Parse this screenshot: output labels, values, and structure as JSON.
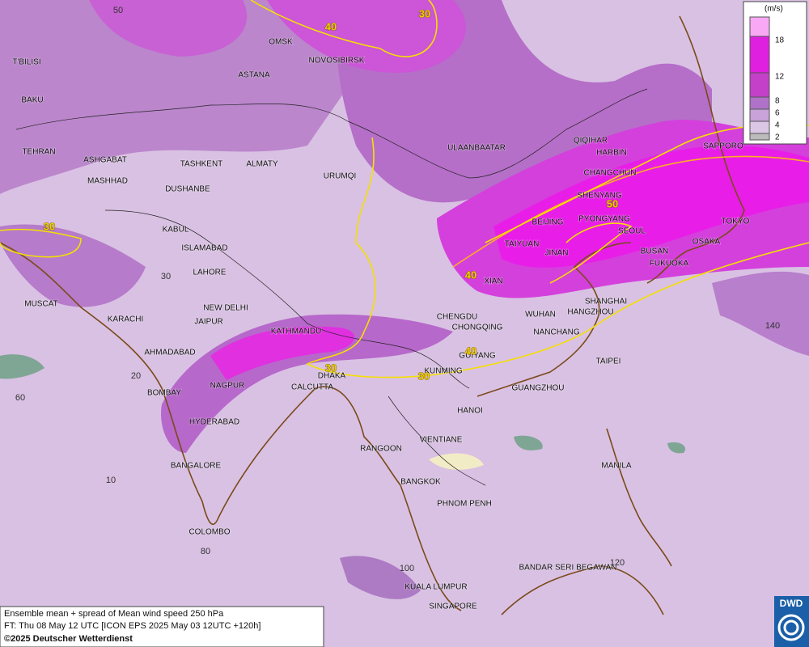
{
  "map": {
    "legend": {
      "unit": "(m/s)",
      "ticks": [
        2,
        4,
        6,
        8,
        12,
        18
      ]
    },
    "cities": [
      "OMSK",
      "NOVOSIBIRSK",
      "T'BILISI",
      "ASTANA",
      "BAKU",
      "TEHRAN",
      "ASHGABAT",
      "MASHHAD",
      "TASHKENT",
      "ALMATY",
      "DUSHANBE",
      "URUMQI",
      "ULAANBAATAR",
      "QIQIHAR",
      "HARBIN",
      "CHANGCHUN",
      "SAPPORO",
      "SHENYANG",
      "PYONGYANG",
      "SEOUL",
      "TOKYO",
      "BEIJING",
      "KABUL",
      "ISLAMABAD",
      "TAIYUAN",
      "JINAN",
      "OSAKA",
      "BUSAN",
      "FUKUOKA",
      "LAHORE",
      "XIAN",
      "SHANGHAI",
      "MUSCAT",
      "NEW DELHI",
      "HANGZHOU",
      "CHENGDU",
      "WUHAN",
      "KARACHI",
      "JAIPUR",
      "KATHMANDU",
      "CHONGQING",
      "NANCHANG",
      "AHMADABAD",
      "GUIYANG",
      "TAIPEI",
      "DHAKA",
      "KUNMING",
      "NAGPUR",
      "CALCUTTA",
      "GUANGZHOU",
      "BOMBAY",
      "HANOI",
      "HYDERABAD",
      "VIENTIANE",
      "RANGOON",
      "BANGALORE",
      "MANILA",
      "BANGKOK",
      "PHNOM PENH",
      "COLOMBO",
      "BANDAR SERI BEGAWAN",
      "KUALA LUMPUR",
      "SINGAPORE"
    ],
    "contour_labels": [
      40,
      30,
      30,
      40,
      50,
      40,
      30,
      30
    ],
    "grid_labels": [
      50,
      30,
      20,
      60,
      10,
      80,
      100,
      120,
      140
    ]
  },
  "footer": {
    "lines": [
      "Ensemble mean + spread of Mean wind speed 250 hPa",
      "FT: Thu 08 May 12 UTC [ICON EPS 2025 May 03 12UTC +120h]",
      "©2025 Deutscher Wetterdienst"
    ]
  },
  "logo": "DWD"
}
